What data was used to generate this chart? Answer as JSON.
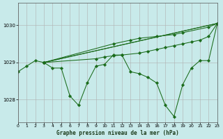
{
  "title": "Graphe pression niveau de la mer (hPa)",
  "bg_color": "#c8eaea",
  "grid_color": "#b0b0b0",
  "line_color": "#1a6b1a",
  "xlim": [
    0,
    23
  ],
  "ylim": [
    1027.4,
    1030.6
  ],
  "yticks": [
    1028,
    1029,
    1030
  ],
  "xticks": [
    0,
    1,
    2,
    3,
    4,
    5,
    6,
    7,
    8,
    9,
    10,
    11,
    12,
    13,
    14,
    15,
    16,
    17,
    18,
    19,
    20,
    21,
    22,
    23
  ],
  "series": [
    {
      "x": [
        0,
        1,
        2,
        3,
        4,
        5,
        6,
        7,
        8,
        9,
        10,
        11,
        12,
        13,
        14,
        15,
        16,
        17,
        18,
        19,
        20,
        21,
        22,
        23
      ],
      "y": [
        1028.75,
        1028.9,
        1029.05,
        1029.0,
        1028.85,
        1028.85,
        1028.1,
        1027.85,
        1028.45,
        1028.9,
        1028.95,
        1029.2,
        1029.2,
        1028.75,
        1028.7,
        1028.6,
        1028.45,
        1027.85,
        1027.55,
        1028.4,
        1028.85,
        1029.05,
        1029.05,
        1030.05
      ]
    },
    {
      "x": [
        3,
        23
      ],
      "y": [
        1029.0,
        1030.05
      ]
    },
    {
      "x": [
        3,
        23
      ],
      "y": [
        1029.0,
        1030.05
      ]
    },
    {
      "x": [
        3,
        11,
        13,
        14,
        16,
        18,
        19,
        22,
        23
      ],
      "y": [
        1029.0,
        1029.5,
        1029.6,
        1029.65,
        1029.7,
        1029.75,
        1029.8,
        1029.95,
        1030.05
      ]
    },
    {
      "x": [
        3,
        9,
        10,
        11,
        12,
        14,
        15,
        16,
        17,
        18,
        19,
        20,
        21,
        22,
        23
      ],
      "y": [
        1029.0,
        1029.1,
        1029.15,
        1029.18,
        1029.2,
        1029.25,
        1029.3,
        1029.35,
        1029.4,
        1029.45,
        1029.5,
        1029.55,
        1029.6,
        1029.7,
        1030.05
      ]
    }
  ]
}
